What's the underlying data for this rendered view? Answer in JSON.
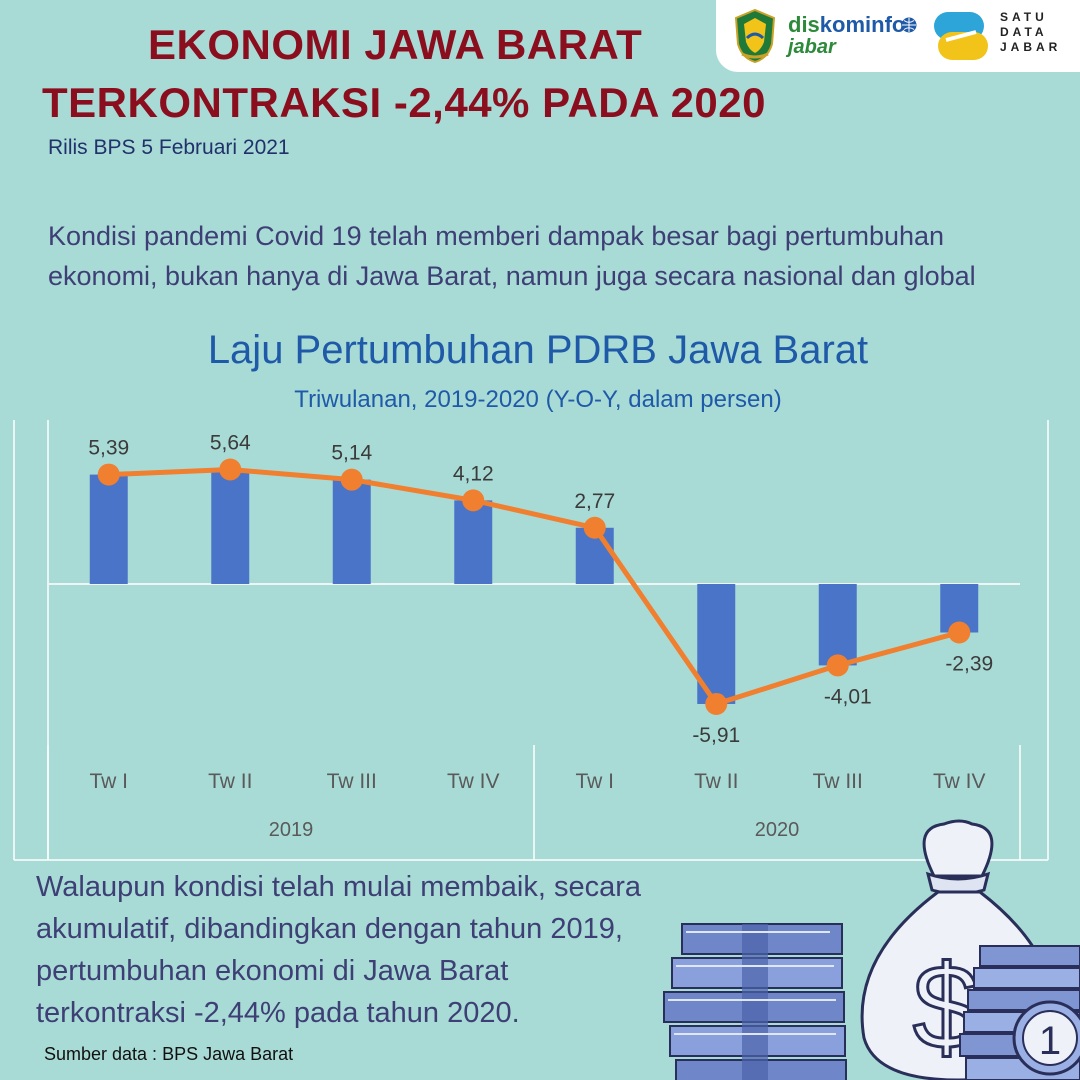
{
  "header": {
    "title_line1": "EKONOMI JAWA BARAT",
    "title_line2": "TERKONTRAKSI -2,44% PADA 2020",
    "release": "Rilis BPS 5 Februari 2021"
  },
  "logos": {
    "diskominfo_dis": "dis",
    "diskominfo_kominfo": "kominfo",
    "diskominfo_jabar": "jabar",
    "satu": "SATU",
    "data": "DATA",
    "jabar": "JABAR"
  },
  "intro": {
    "line1": "Kondisi pandemi Covid 19 telah memberi dampak besar bagi pertumbuhan",
    "line2": "ekonomi, bukan hanya di Jawa Barat, namun juga secara nasional dan global"
  },
  "outro": {
    "line1": "Walaupun kondisi telah mulai membaik, secara",
    "line2": "akumulatif, dibandingkan dengan tahun 2019,",
    "line3": "pertumbuhan ekonomi di Jawa Barat",
    "line4": "terkontraksi -2,44% pada tahun 2020."
  },
  "source": "Sumber data : BPS Jawa Barat",
  "colors": {
    "bar": "#4a74c8",
    "line": "#f07f2f",
    "title": "#8b0e1e",
    "chart_title": "#1f5aa8"
  },
  "chart_data": {
    "type": "bar",
    "title": "Laju Pertumbuhan PDRB Jawa Barat",
    "subtitle": "Triwulanan, 2019-2020 (Y-O-Y, dalam persen)",
    "categories": [
      "Tw I",
      "Tw II",
      "Tw III",
      "Tw IV",
      "Tw I",
      "Tw II",
      "Tw III",
      "Tw IV"
    ],
    "groups": [
      {
        "label": "2019",
        "count": 4
      },
      {
        "label": "2020",
        "count": 4
      }
    ],
    "series": [
      {
        "type": "bar",
        "values": [
          5.39,
          5.64,
          5.14,
          4.12,
          2.77,
          -5.91,
          -4.01,
          -2.39
        ]
      },
      {
        "type": "line",
        "values": [
          5.39,
          5.64,
          5.14,
          4.12,
          2.77,
          -5.91,
          -4.01,
          -2.39
        ]
      }
    ],
    "data_labels": [
      "5,39",
      "5,64",
      "5,14",
      "4,12",
      "2,77",
      "-5,91",
      "-4,01",
      "-2,39"
    ],
    "grid": false
  }
}
